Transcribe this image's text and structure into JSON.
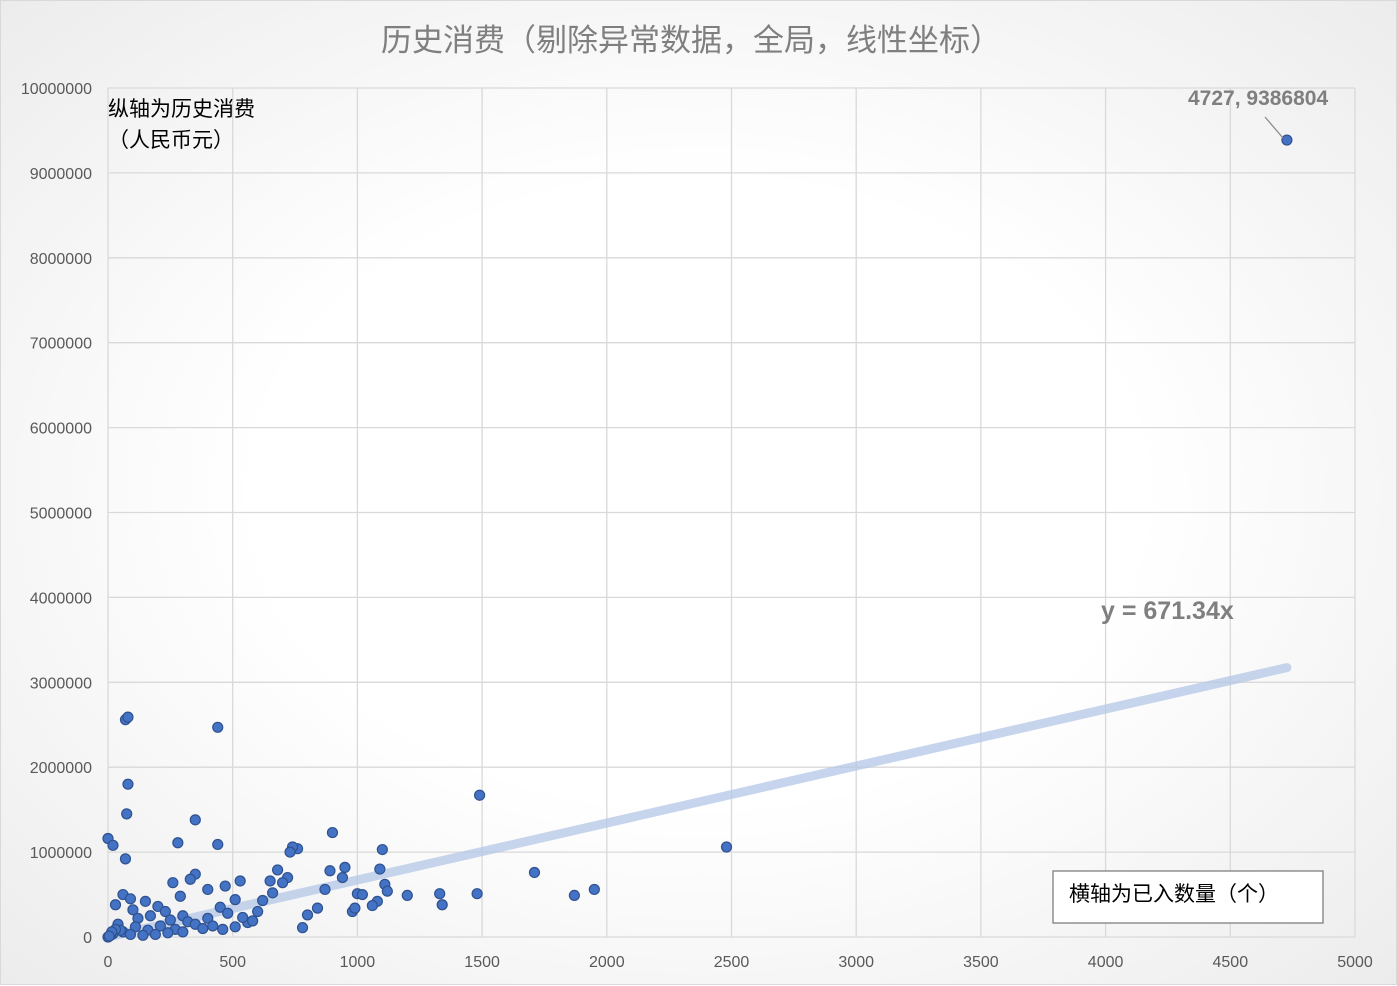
{
  "chart_data": {
    "type": "scatter",
    "title": "历史消费（剔除异常数据，全局，线性坐标）",
    "ylabel": "纵轴为历史消费（人民币元）",
    "ylabel_lines": [
      "纵轴为历史消费",
      "（人民币元）"
    ],
    "xlabel": "横轴为已入数量（个）",
    "xlim": [
      0,
      5000
    ],
    "ylim": [
      0,
      10000000
    ],
    "x_ticks": [
      0,
      500,
      1000,
      1500,
      2000,
      2500,
      3000,
      3500,
      4000,
      4500,
      5000
    ],
    "y_ticks": [
      0,
      1000000,
      2000000,
      3000000,
      4000000,
      5000000,
      6000000,
      7000000,
      8000000,
      9000000,
      10000000
    ],
    "grid": true,
    "legend": "none",
    "series": [
      {
        "color": "#4472c4",
        "points": [
          [
            4727,
            9386804
          ],
          [
            2480,
            1060000
          ],
          [
            1490,
            1670000
          ],
          [
            1710,
            760000
          ],
          [
            1950,
            560000
          ],
          [
            1870,
            490000
          ],
          [
            1480,
            510000
          ],
          [
            1330,
            510000
          ],
          [
            1340,
            380000
          ],
          [
            1200,
            490000
          ],
          [
            1100,
            1030000
          ],
          [
            1090,
            800000
          ],
          [
            1110,
            620000
          ],
          [
            1120,
            540000
          ],
          [
            1080,
            420000
          ],
          [
            1000,
            510000
          ],
          [
            1020,
            500000
          ],
          [
            1060,
            370000
          ],
          [
            980,
            300000
          ],
          [
            990,
            340000
          ],
          [
            900,
            1230000
          ],
          [
            950,
            820000
          ],
          [
            940,
            700000
          ],
          [
            890,
            780000
          ],
          [
            870,
            560000
          ],
          [
            840,
            340000
          ],
          [
            800,
            260000
          ],
          [
            780,
            110000
          ],
          [
            760,
            1040000
          ],
          [
            740,
            1060000
          ],
          [
            730,
            1000000
          ],
          [
            720,
            700000
          ],
          [
            680,
            790000
          ],
          [
            700,
            640000
          ],
          [
            650,
            660000
          ],
          [
            660,
            520000
          ],
          [
            620,
            430000
          ],
          [
            600,
            300000
          ],
          [
            560,
            170000
          ],
          [
            440,
            2470000
          ],
          [
            440,
            1090000
          ],
          [
            350,
            1380000
          ],
          [
            280,
            1110000
          ],
          [
            350,
            740000
          ],
          [
            330,
            680000
          ],
          [
            260,
            640000
          ],
          [
            290,
            480000
          ],
          [
            400,
            560000
          ],
          [
            470,
            600000
          ],
          [
            530,
            660000
          ],
          [
            510,
            440000
          ],
          [
            450,
            350000
          ],
          [
            70,
            2560000
          ],
          [
            80,
            2590000
          ],
          [
            80,
            1800000
          ],
          [
            75,
            1450000
          ],
          [
            0,
            1160000
          ],
          [
            20,
            1080000
          ],
          [
            70,
            920000
          ],
          [
            60,
            500000
          ],
          [
            90,
            450000
          ],
          [
            30,
            380000
          ],
          [
            100,
            320000
          ],
          [
            150,
            420000
          ],
          [
            200,
            360000
          ],
          [
            230,
            300000
          ],
          [
            170,
            250000
          ],
          [
            120,
            220000
          ],
          [
            250,
            200000
          ],
          [
            300,
            250000
          ],
          [
            320,
            180000
          ],
          [
            350,
            150000
          ],
          [
            400,
            220000
          ],
          [
            420,
            130000
          ],
          [
            380,
            100000
          ],
          [
            270,
            90000
          ],
          [
            210,
            130000
          ],
          [
            160,
            80000
          ],
          [
            110,
            120000
          ],
          [
            60,
            60000
          ],
          [
            40,
            150000
          ],
          [
            20,
            40000
          ],
          [
            10,
            20000
          ],
          [
            0,
            0
          ],
          [
            480,
            280000
          ],
          [
            540,
            230000
          ],
          [
            580,
            190000
          ],
          [
            510,
            120000
          ],
          [
            460,
            90000
          ],
          [
            300,
            60000
          ],
          [
            240,
            50000
          ],
          [
            190,
            30000
          ],
          [
            140,
            20000
          ],
          [
            90,
            30000
          ],
          [
            50,
            80000
          ],
          [
            30,
            90000
          ],
          [
            15,
            60000
          ],
          [
            5,
            10000
          ]
        ]
      }
    ],
    "annotations": [
      {
        "label": "4727, 9386804",
        "x": 4727,
        "y": 9386804
      }
    ],
    "trendline": {
      "label": "y = 671.34x",
      "slope": 671.34,
      "intercept": 0,
      "x_start": 0,
      "x_end": 4727
    }
  }
}
